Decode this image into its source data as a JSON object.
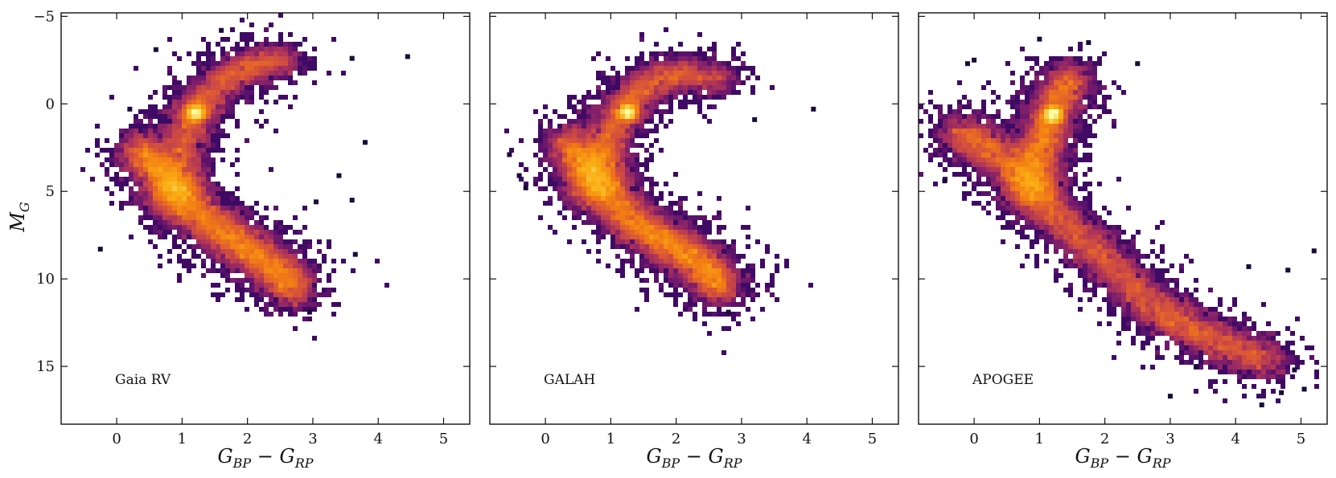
{
  "chart_data": [
    {
      "type": "heatmap",
      "panel_label": "Gaia RV",
      "xlabel": "G_{BP} − G_{RP}",
      "ylabel": "M_G",
      "xlim": [
        -0.85,
        5.4
      ],
      "ylim": [
        18.3,
        -5.2
      ],
      "y_inverted": true,
      "x_ticks": [
        0,
        1,
        2,
        3,
        4,
        5
      ],
      "y_ticks": [
        -5,
        0,
        5,
        10,
        15
      ],
      "colormap": "inferno",
      "features": {
        "main_sequence": [
          [
            0.3,
            2.5
          ],
          [
            0.6,
            3.5
          ],
          [
            0.9,
            5.0
          ],
          [
            1.3,
            6.5
          ],
          [
            1.7,
            7.6
          ],
          [
            2.1,
            8.5
          ],
          [
            2.5,
            9.6
          ],
          [
            2.75,
            10.8
          ]
        ],
        "giant_branch": [
          [
            0.9,
            3.6
          ],
          [
            1.05,
            2.0
          ],
          [
            1.15,
            0.6
          ],
          [
            1.35,
            -0.3
          ],
          [
            1.7,
            -1.6
          ],
          [
            2.1,
            -2.2
          ],
          [
            2.6,
            -2.5
          ]
        ],
        "red_clump": [
          1.2,
          0.5
        ],
        "density_peak": [
          0.9,
          4.8
        ]
      },
      "outliers": [
        [
          -0.25,
          8.3
        ],
        [
          0.2,
          0.3
        ],
        [
          0.6,
          -3.1
        ],
        [
          1.6,
          -4.2
        ],
        [
          3.05,
          5.6
        ],
        [
          3.4,
          4.1
        ],
        [
          3.6,
          5.5
        ],
        [
          3.65,
          8.6
        ],
        [
          3.6,
          -2.6
        ],
        [
          3.8,
          2.2
        ],
        [
          4.45,
          -2.7
        ],
        [
          2.95,
          11.9
        ]
      ]
    },
    {
      "type": "heatmap",
      "panel_label": "GALAH",
      "xlabel": "G_{BP} − G_{RP}",
      "xlim": [
        -0.85,
        5.4
      ],
      "ylim": [
        18.3,
        -5.2
      ],
      "y_inverted": true,
      "x_ticks": [
        0,
        1,
        2,
        3,
        4,
        5
      ],
      "colormap": "inferno",
      "features": {
        "main_sequence": [
          [
            0.3,
            2.0
          ],
          [
            0.6,
            3.5
          ],
          [
            0.9,
            5.0
          ],
          [
            1.3,
            6.6
          ],
          [
            1.7,
            7.6
          ],
          [
            2.1,
            8.4
          ],
          [
            2.5,
            9.6
          ],
          [
            2.7,
            10.6
          ]
        ],
        "giant_branch": [
          [
            0.75,
            3.5
          ],
          [
            0.95,
            2.2
          ],
          [
            1.1,
            0.8
          ],
          [
            1.3,
            -0.3
          ],
          [
            1.6,
            -1.2
          ],
          [
            2.1,
            -1.8
          ],
          [
            2.7,
            -1.4
          ]
        ],
        "red_clump": [
          1.25,
          0.5
        ],
        "density_peak": [
          0.8,
          4.2
        ]
      },
      "outliers": [
        [
          -0.55,
          2.9
        ],
        [
          -0.4,
          4.1
        ],
        [
          -0.3,
          4.8
        ],
        [
          4.1,
          0.3
        ],
        [
          2.8,
          11.9
        ],
        [
          3.2,
          0.9
        ]
      ]
    },
    {
      "type": "heatmap",
      "panel_label": "APOGEE",
      "xlabel": "G_{BP} − G_{RP}",
      "xlim": [
        -0.85,
        5.4
      ],
      "ylim": [
        18.3,
        -5.2
      ],
      "y_inverted": true,
      "x_ticks": [
        0,
        1,
        2,
        3,
        4,
        5
      ],
      "colormap": "inferno",
      "features": {
        "main_sequence": [
          [
            -0.3,
            1.5
          ],
          [
            0.1,
            2.3
          ],
          [
            0.5,
            3.2
          ],
          [
            0.9,
            4.8
          ],
          [
            1.3,
            6.5
          ],
          [
            1.8,
            8.2
          ],
          [
            2.3,
            10.0
          ],
          [
            2.8,
            11.8
          ],
          [
            3.3,
            12.8
          ],
          [
            3.9,
            13.9
          ],
          [
            4.6,
            14.8
          ]
        ],
        "giant_branch": [
          [
            0.9,
            3.5
          ],
          [
            1.05,
            2.2
          ],
          [
            1.15,
            0.9
          ],
          [
            1.3,
            -0.4
          ],
          [
            1.5,
            -1.8
          ]
        ],
        "red_clump": [
          1.2,
          0.6
        ],
        "density_peak": [
          0.9,
          4.5
        ]
      },
      "outliers": [
        [
          -0.45,
          4.4
        ],
        [
          -0.1,
          -2.3
        ],
        [
          0.0,
          -2.5
        ],
        [
          1.0,
          -3.7
        ],
        [
          1.75,
          -3.5
        ],
        [
          2.5,
          -2.3
        ],
        [
          4.2,
          9.3
        ],
        [
          4.8,
          9.5
        ],
        [
          5.2,
          8.4
        ],
        [
          5.05,
          16.3
        ],
        [
          4.9,
          15.2
        ],
        [
          4.4,
          17.2
        ],
        [
          4.7,
          16.5
        ],
        [
          3.0,
          16.7
        ],
        [
          3.4,
          15.0
        ]
      ]
    }
  ]
}
